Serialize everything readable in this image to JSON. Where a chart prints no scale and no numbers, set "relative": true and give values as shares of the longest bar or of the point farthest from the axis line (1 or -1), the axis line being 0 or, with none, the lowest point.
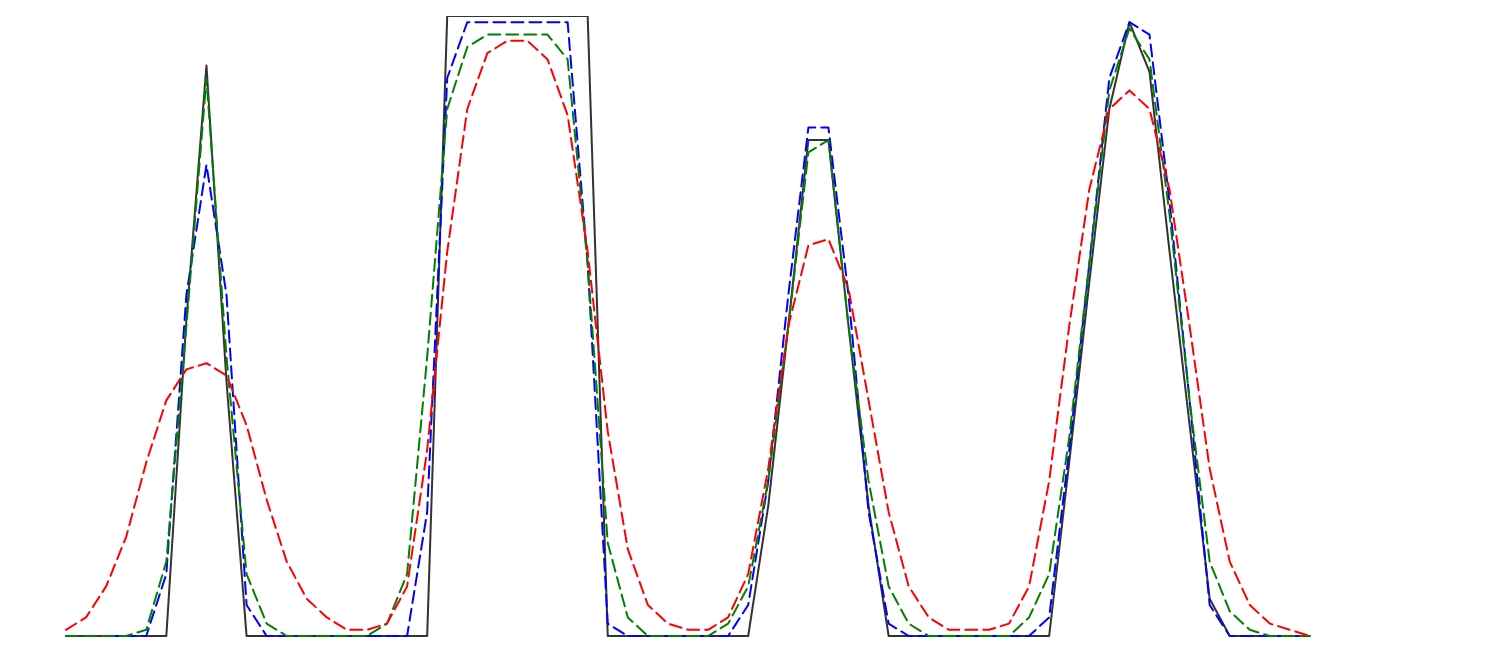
{
  "chart_data": {
    "type": "line",
    "relative": true,
    "marker": "none",
    "categories": [
      null,
      null,
      null,
      null,
      null,
      null,
      null,
      null,
      null,
      null,
      null,
      null,
      null,
      null,
      null,
      null,
      null,
      null,
      null,
      null,
      null,
      null,
      null,
      null,
      null,
      null,
      null,
      null,
      null,
      null,
      null,
      null,
      null,
      null,
      null,
      null,
      null,
      null,
      null,
      null,
      null,
      null,
      null,
      null,
      null,
      null,
      null,
      null,
      null,
      null,
      null,
      null,
      null,
      null,
      null,
      null,
      null,
      null,
      null,
      null,
      null,
      null,
      null
    ],
    "series": [
      {
        "color": "#333333",
        "line_style": "solid",
        "values": [
          0,
          0,
          0,
          0,
          0,
          0,
          0.51,
          0.92,
          0.41,
          0,
          0,
          0,
          0,
          0,
          0,
          0,
          0,
          0,
          0,
          1,
          1,
          1,
          1,
          1,
          1,
          1,
          1,
          0,
          0,
          0,
          0,
          0,
          0,
          0,
          0,
          0.21,
          0.5,
          0.8,
          0.8,
          0.5,
          0.21,
          0,
          0,
          0,
          0,
          0,
          0,
          0,
          0,
          0,
          0.28,
          0.57,
          0.85,
          0.99,
          0.91,
          0.62,
          0.34,
          0.06,
          0,
          0,
          0,
          null,
          null
        ]
      },
      {
        "color": "#0000ff",
        "line_style": "dashed",
        "values": [
          null,
          null,
          0,
          0,
          0,
          0.1,
          0.55,
          0.76,
          0.55,
          0.05,
          0,
          0,
          0,
          0,
          0,
          0,
          0,
          0,
          0.2,
          0.9,
          0.99,
          0.99,
          0.99,
          0.99,
          0.99,
          0.99,
          0.6,
          0.02,
          0,
          0,
          0,
          0,
          0,
          0,
          0.05,
          0.25,
          0.55,
          0.82,
          0.82,
          0.55,
          0.2,
          0.02,
          0,
          0,
          0,
          0,
          0,
          0,
          0,
          0.03,
          0.3,
          0.6,
          0.9,
          0.99,
          0.97,
          0.7,
          0.38,
          0.05,
          0,
          0,
          0,
          0,
          0
        ]
      },
      {
        "color": "#008000",
        "line_style": "dashed",
        "values": [
          0,
          0,
          0,
          0,
          0.01,
          0.12,
          0.5,
          0.9,
          0.45,
          0.1,
          0.02,
          0,
          0,
          0,
          0,
          0,
          0.02,
          0.1,
          0.45,
          0.85,
          0.95,
          0.97,
          0.97,
          0.97,
          0.97,
          0.93,
          0.6,
          0.15,
          0.03,
          0,
          0,
          0,
          0,
          0.02,
          0.08,
          0.25,
          0.5,
          0.78,
          0.8,
          0.5,
          0.25,
          0.08,
          0.02,
          0,
          0,
          0,
          0,
          0,
          0.03,
          0.1,
          0.32,
          0.6,
          0.88,
          0.98,
          0.93,
          0.68,
          0.38,
          0.12,
          0.04,
          0.01,
          0,
          0,
          0
        ]
      },
      {
        "color": "#ff0000",
        "line_style": "dashed",
        "values": [
          0.01,
          0.03,
          0.08,
          0.16,
          0.28,
          0.38,
          0.43,
          0.44,
          0.42,
          0.34,
          0.22,
          0.12,
          0.06,
          0.03,
          0.01,
          0.01,
          0.02,
          0.08,
          0.3,
          0.62,
          0.85,
          0.94,
          0.96,
          0.96,
          0.93,
          0.84,
          0.62,
          0.33,
          0.14,
          0.05,
          0.02,
          0.01,
          0.01,
          0.03,
          0.1,
          0.27,
          0.5,
          0.63,
          0.64,
          0.56,
          0.38,
          0.2,
          0.08,
          0.03,
          0.01,
          0.01,
          0.01,
          0.02,
          0.08,
          0.25,
          0.5,
          0.72,
          0.85,
          0.88,
          0.85,
          0.72,
          0.5,
          0.27,
          0.12,
          0.05,
          0.02,
          0.01,
          0
        ]
      }
    ]
  }
}
